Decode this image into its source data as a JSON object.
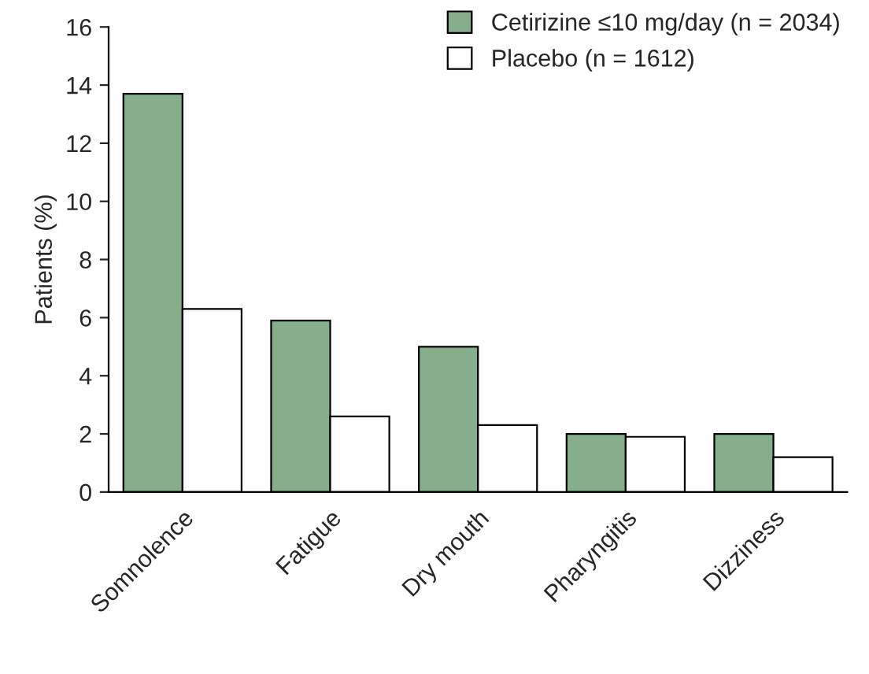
{
  "chart_data": {
    "type": "bar",
    "ylabel": "Patients (%)",
    "categories": [
      "Somnolence",
      "Fatigue",
      "Dry mouth",
      "Pharyngitis",
      "Dizziness"
    ],
    "series": [
      {
        "name": "Cetirizine ≤10 mg/day (n = 2034)",
        "color": "#86ae8c",
        "values": [
          13.7,
          5.9,
          5.0,
          2.0,
          2.0
        ]
      },
      {
        "name": "Placebo (n = 1612)",
        "color": "#ffffff",
        "values": [
          6.3,
          2.6,
          2.3,
          1.9,
          1.2
        ]
      }
    ],
    "ylim": [
      0,
      16
    ],
    "yticks": [
      0,
      2,
      4,
      6,
      8,
      10,
      12,
      14,
      16
    ],
    "grid": false,
    "legend": "top right"
  }
}
